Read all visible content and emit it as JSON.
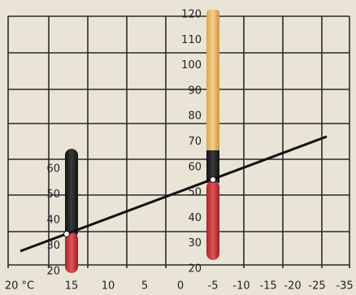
{
  "left_scale": {
    "labels": [
      "60",
      "50",
      "40",
      "30",
      "20"
    ]
  },
  "middle_scale": {
    "labels": [
      "120",
      "110",
      "100",
      "90",
      "80",
      "70",
      "60",
      "50",
      "40",
      "30",
      "20"
    ]
  },
  "bottom_scale": {
    "labels": [
      "20 °C",
      "15",
      "10",
      "5",
      "0",
      "-5",
      "-10",
      "-15",
      "-20",
      "-25",
      "-35"
    ]
  }
}
